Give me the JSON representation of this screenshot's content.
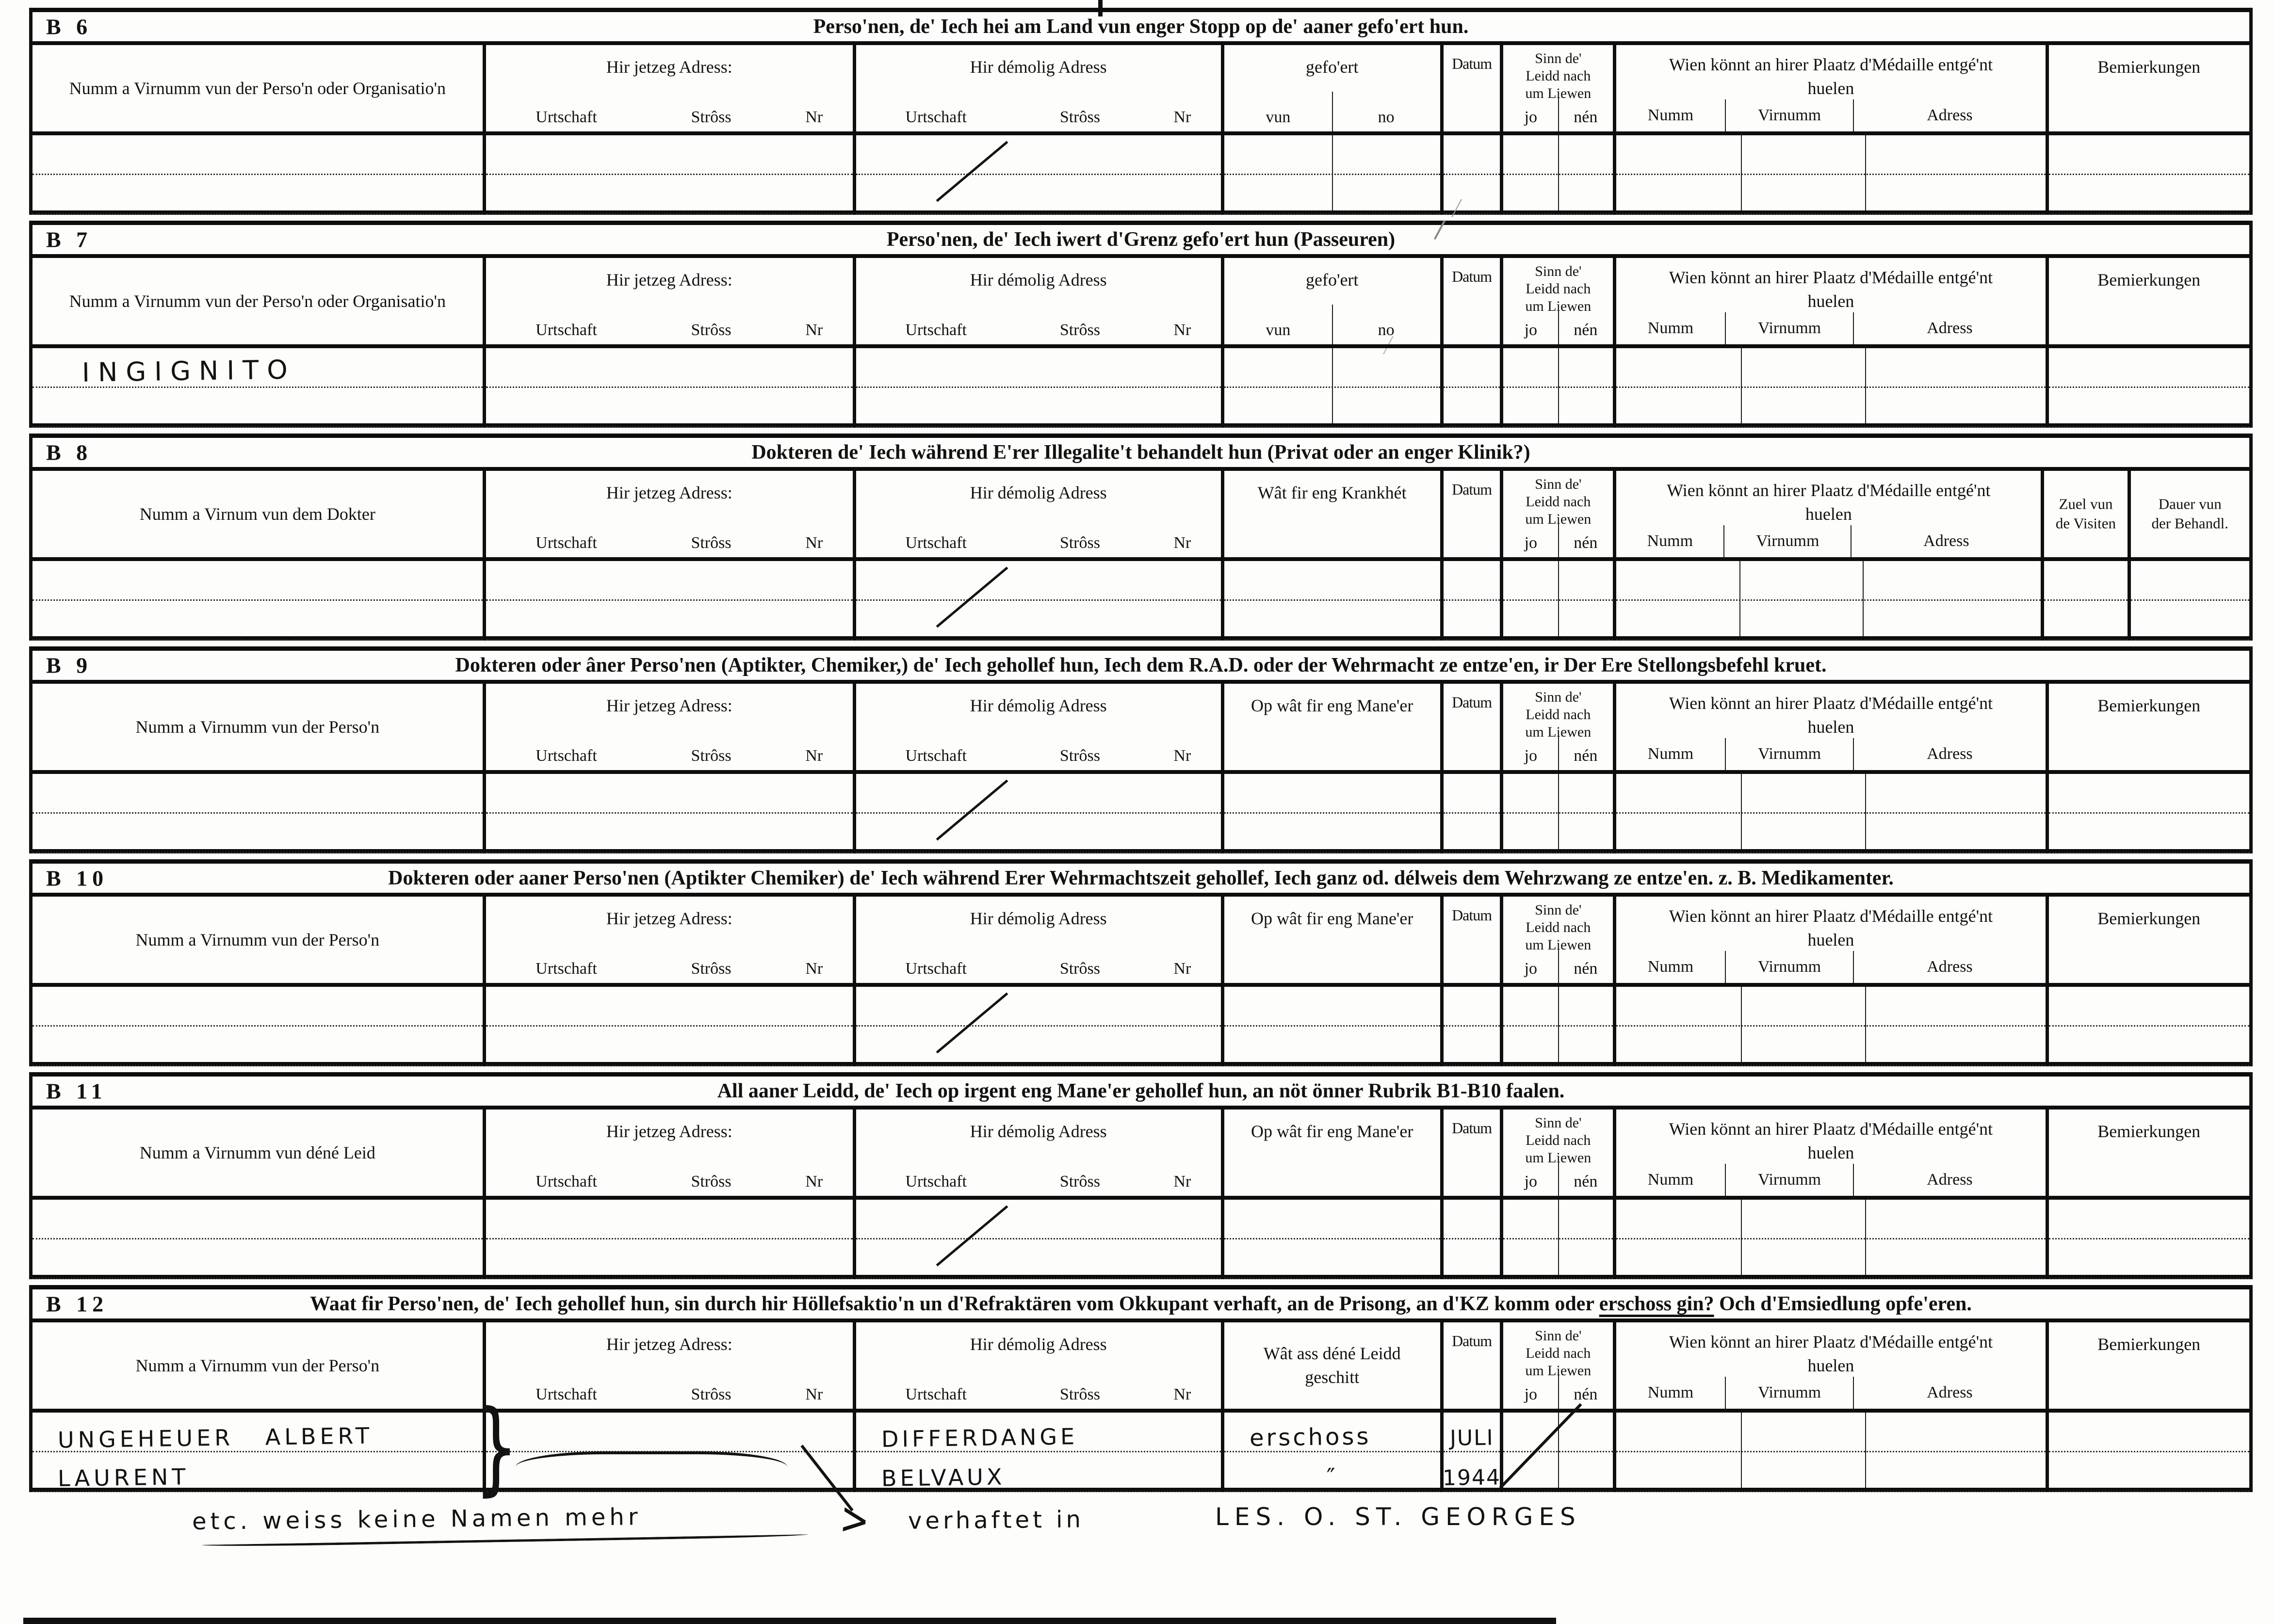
{
  "page": {
    "background": "#fdfdfb",
    "ink": "#121212"
  },
  "common": {
    "jetzeg": {
      "label": "Hir jetzeg Adress:",
      "subs": [
        "Urtschaft",
        "Strôss",
        "Nr"
      ]
    },
    "demolig": {
      "label": "Hir démolig Adress",
      "subs": [
        "Urtschaft",
        "Strôss",
        "Nr"
      ]
    },
    "datum": "Datum",
    "sinn": {
      "lines": [
        "Sinn de'",
        "Leidd nach",
        "um Liewen"
      ],
      "subs": [
        "jo",
        "nén"
      ]
    },
    "medaille": {
      "label": "Wien könnt an hirer Plaatz d'Médaille entgé'nt huelen",
      "subs": [
        "Numm",
        "Virnumm",
        "Adress"
      ]
    },
    "bemierkungen": "Bemierkungen"
  },
  "sections": [
    {
      "id": "B 6",
      "title_pre": "Perso'nen, de' Iech hei am Land vun enger Stopp op de' aaner gefo'ert hun.",
      "title_u": "",
      "title_post": "",
      "col1": "Numm a Virnumm vun der Perso'n oder Organisatio'n",
      "mid": {
        "label": "gefo'ert",
        "subs": [
          "vun",
          "no"
        ]
      },
      "tail": "bemierkungen",
      "marks": [
        {
          "type": "slash"
        }
      ]
    },
    {
      "id": "B 7",
      "title_pre": "Perso'nen, de' Iech iwert d'Grenz gefo'ert hun (Passeuren)",
      "title_u": "",
      "title_post": "",
      "col1": "Numm a Virnumm vun der Perso'n oder Organisatio'n",
      "mid": {
        "label": "gefo'ert",
        "subs": [
          "vun",
          "no"
        ]
      },
      "tail": "bemierkungen",
      "entries": {
        "c1r1": "INGIGNITO"
      }
    },
    {
      "id": "B 8",
      "title_pre": "Dokteren de' Iech während E'rer Illegalite't behandelt hun (Privat oder an enger Klinik?)",
      "title_u": "",
      "title_post": "",
      "col1": "Numm a Virnum vun dem Dokter",
      "mid": {
        "label": "Wât fir eng Krankhét",
        "subs": []
      },
      "tail": "visits",
      "visits": [
        [
          "Zuel vun",
          "de Visiten"
        ],
        [
          "Dauer vun",
          "der Behandl."
        ]
      ],
      "marks": [
        {
          "type": "slash"
        }
      ]
    },
    {
      "id": "B 9",
      "title_pre": "Dokteren oder âner Perso'nen (Aptikter, Chemiker,) de' Iech gehollef hun, Iech dem R.A.D. oder der Wehrmacht ze entze'en, ir Der Ere Stellongsbefehl kruet.",
      "title_u": "",
      "title_post": "",
      "col1": "Numm a Virnumm vun der Perso'n",
      "mid": {
        "label": "Op wât fir eng Mane'er",
        "subs": []
      },
      "tail": "bemierkungen",
      "marks": [
        {
          "type": "slash"
        }
      ]
    },
    {
      "id": "B 10",
      "title_pre": "Dokteren oder aaner Perso'nen (Aptikter Chemiker) de' Iech während Erer Wehrmachtszeit gehollef, Iech ganz od. délweis dem Wehrzwang ze entze'en. z. B. Medikamenter.",
      "title_u": "",
      "title_post": "",
      "col1": "Numm a Virnumm vun der Perso'n",
      "mid": {
        "label": "Op wât fir eng Mane'er",
        "subs": []
      },
      "tail": "bemierkungen",
      "marks": [
        {
          "type": "slash"
        }
      ]
    },
    {
      "id": "B 11",
      "title_pre": "All aaner Leidd, de' Iech op irgent eng Mane'er gehollef hun, an nöt önner Rubrik B1-B10 faalen.",
      "title_u": "",
      "title_post": "",
      "col1": "Numm a Virnumm vun déné Leid",
      "mid": {
        "label": "Op wât fir eng Mane'er",
        "subs": []
      },
      "tail": "bemierkungen",
      "marks": [
        {
          "type": "slash"
        }
      ]
    },
    {
      "id": "B 12",
      "title_pre": "Waat fir Perso'nen, de' Iech gehollef hun, sin durch hir Höllefsaktio'n un d'Refraktären vom Okkupant verhaft, an de Prisong, an d'KZ komm oder ",
      "title_u": "erschoss gin?",
      "title_post": " Och d'Emsiedlung opfe'eren.",
      "col1": "Numm a Virnumm vun der Perso'n",
      "mid": {
        "label": "Wât ass déné Leidd geschitt",
        "subs": []
      },
      "tail": "bemierkungen",
      "entries": {
        "c1r1": "UNGEHEUER ALBERT",
        "c1r2": "LAURENT",
        "c3r1": "DIFFERDANGE",
        "c3r2": "BELVAUX",
        "c4r1": "erschoss",
        "c4r2": "″",
        "c5r1": "JULI",
        "c5r2": "1944"
      },
      "marks": [
        {
          "type": "brace",
          "glyph": "}"
        },
        {
          "type": "dash"
        },
        {
          "type": "slash-sinn"
        }
      ]
    }
  ],
  "footer": {
    "note1": "etc. weiss keine Namen mehr",
    "arrow": ">",
    "note2": "verhaftet in",
    "note3": "LES. O. ST. GEORGES"
  }
}
